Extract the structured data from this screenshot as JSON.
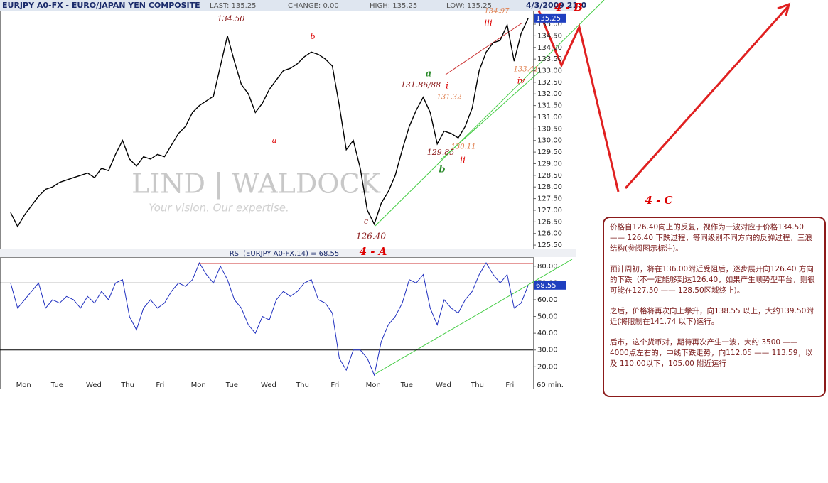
{
  "header": {
    "title": "EURJPY A0-FX - EURO/JAPAN YEN COMPOSITE",
    "last": "LAST: 135.25",
    "change": "CHANGE: 0.00",
    "high": "HIGH: 135.25",
    "low": "LOW: 135.25",
    "low_value": "135.25",
    "datetime": "4/3/2009 21:0"
  },
  "watermark": {
    "brand": "LIND | WALDOCK",
    "slogan": "Your vision. Our expertise."
  },
  "chart_data": [
    {
      "type": "line",
      "color": "#000000",
      "values": [
        126.9,
        126.3,
        126.8,
        127.2,
        127.6,
        127.9,
        128.0,
        128.2,
        128.3,
        128.4,
        128.5,
        128.6,
        128.4,
        128.8,
        128.7,
        129.4,
        130.0,
        129.2,
        128.9,
        129.3,
        129.2,
        129.4,
        129.3,
        129.8,
        130.3,
        130.6,
        131.2,
        131.5,
        131.7,
        131.9,
        133.2,
        134.5,
        133.4,
        132.4,
        132.0,
        131.2,
        131.6,
        132.2,
        132.6,
        133.0,
        133.1,
        133.3,
        133.6,
        133.8,
        133.7,
        133.5,
        133.2,
        131.5,
        129.6,
        130.0,
        128.8,
        127.0,
        126.4,
        127.3,
        127.8,
        128.5,
        129.6,
        130.6,
        131.3,
        131.86,
        131.2,
        129.85,
        130.4,
        130.3,
        130.11,
        130.6,
        131.4,
        133.0,
        133.8,
        134.2,
        134.3,
        134.97,
        133.41,
        134.6,
        135.25
      ],
      "ylim": [
        125.35,
        135.55
      ],
      "yticks": [
        {
          "value": 125.5,
          "label": "125.50"
        },
        {
          "value": 126,
          "label": "126.00"
        },
        {
          "value": 126.5,
          "label": "126.50"
        },
        {
          "value": 127,
          "label": "127.00"
        },
        {
          "value": 127.5,
          "label": "127.50"
        },
        {
          "value": 128,
          "label": "128.00"
        },
        {
          "value": 128.5,
          "label": "128.50"
        },
        {
          "value": 129,
          "label": "129.00"
        },
        {
          "value": 129.5,
          "label": "129.50"
        },
        {
          "value": 130,
          "label": "130.00"
        },
        {
          "value": 130.5,
          "label": "130.50"
        },
        {
          "value": 131,
          "label": "131.00"
        },
        {
          "value": 131.5,
          "label": "131.50"
        },
        {
          "value": 132,
          "label": "132.00"
        },
        {
          "value": 132.5,
          "label": "132.50"
        },
        {
          "value": 133,
          "label": "133.00"
        },
        {
          "value": 133.5,
          "label": "133.50"
        },
        {
          "value": 134,
          "label": "134.00"
        },
        {
          "value": 134.5,
          "label": "134.50"
        },
        {
          "value": 135,
          "label": "135.00"
        }
      ],
      "annotations": [
        {
          "text": "134.50",
          "color": "#8b1a1a"
        },
        {
          "text": "b",
          "color": "#dd0000"
        },
        {
          "text": "a",
          "color": "#dd0000"
        },
        {
          "text": "c",
          "color": "#8b1a1a"
        },
        {
          "text": "126.40",
          "color": "#8b1a1a"
        },
        {
          "text": "4 - A",
          "color": "#dd0000"
        },
        {
          "text": "a",
          "color": "#2a8a2a"
        },
        {
          "text": "b",
          "color": "#2a8a2a"
        },
        {
          "text": "131.86/88",
          "color": "#8b1a1a"
        },
        {
          "text": "131.32",
          "color": "#e08050"
        },
        {
          "text": "i",
          "color": "#dd0000"
        },
        {
          "text": "129.85",
          "color": "#8b1a1a"
        },
        {
          "text": "130.11",
          "color": "#e08050"
        },
        {
          "text": "ii",
          "color": "#dd0000"
        },
        {
          "text": "iii",
          "color": "#dd0000"
        },
        {
          "text": "134.97",
          "color": "#e08050"
        },
        {
          "text": "133.41",
          "color": "#e08050"
        },
        {
          "text": "iv",
          "color": "#dd0000"
        },
        {
          "text": "4 - B",
          "color": "#dd0000"
        },
        {
          "text": "4 - C",
          "color": "#dd0000"
        }
      ]
    },
    {
      "type": "line",
      "title": "RSI (EURJPY A0-FX,14) = 68.55",
      "color": "#1f2fbf",
      "categories": [
        null,
        null,
        "Mon",
        null,
        null,
        null,
        null,
        "Tue",
        null,
        null,
        null,
        null,
        "Wed",
        null,
        null,
        null,
        null,
        "Thu",
        null,
        null,
        null,
        null,
        "Fri",
        null,
        null,
        null,
        null,
        "Mon",
        null,
        null,
        null,
        null,
        "Tue",
        null,
        null,
        null,
        null,
        "Wed",
        null,
        null,
        null,
        null,
        "Thu",
        null,
        null,
        null,
        null,
        "Fri",
        null,
        null,
        null,
        null,
        "Mon",
        null,
        null,
        null,
        null,
        "Tue",
        null,
        null,
        null,
        null,
        "Wed",
        null,
        null,
        null,
        null,
        "Thu",
        null,
        null,
        null,
        null,
        "Fri",
        null,
        null
      ],
      "values": [
        70,
        55,
        60,
        65,
        70,
        55,
        60,
        58,
        62,
        60,
        55,
        62,
        58,
        65,
        60,
        70,
        72,
        50,
        42,
        55,
        60,
        55,
        58,
        65,
        70,
        68,
        72,
        82,
        75,
        70,
        80,
        72,
        60,
        55,
        45,
        40,
        50,
        48,
        60,
        65,
        62,
        65,
        70,
        72,
        60,
        58,
        52,
        25,
        18,
        30,
        30,
        25,
        15,
        35,
        45,
        50,
        58,
        72,
        70,
        75,
        55,
        45,
        60,
        55,
        52,
        60,
        65,
        75,
        82,
        75,
        70,
        75,
        55,
        58,
        68.55
      ],
      "x_label": "60 min.",
      "ylim": [
        7,
        85
      ],
      "yticks": [
        {
          "value": 20,
          "label": "20.00"
        },
        {
          "value": 30,
          "label": "30.00"
        },
        {
          "value": 40,
          "label": "40.00"
        },
        {
          "value": 50,
          "label": "50.00"
        },
        {
          "value": 60,
          "label": "60.00"
        },
        {
          "value": 70,
          "label": "70.00"
        },
        {
          "value": 80,
          "label": "80.00"
        }
      ],
      "hlines": [
        30,
        70
      ]
    }
  ],
  "notes": {
    "paragraphs": [
      "价格自126.40向上的反复，视作为一波对应于价格134.50 —— 126.40 下跌过程，等同级别不同方向的反弹过程，三浪结构(参阅图示标注)。",
      "预计周初，将在136.00附近受阻后，逐步展开向126.40 方向的下跌（不一定能够到达126.40，如果产生顺势型平台，则很可能在127.50 —— 128.50区域终止)。",
      "之后，价格将再次向上攀升，向138.55 以上，大约139.50附近(将限制在141.74 以下)运行。",
      "后市，这个货币对，期待再次产生一波，大约 3500 —— 4000点左右的，中线下跌走势，向112.05 —— 113.59，以及 110.00以下，105.00 附近运行"
    ]
  }
}
